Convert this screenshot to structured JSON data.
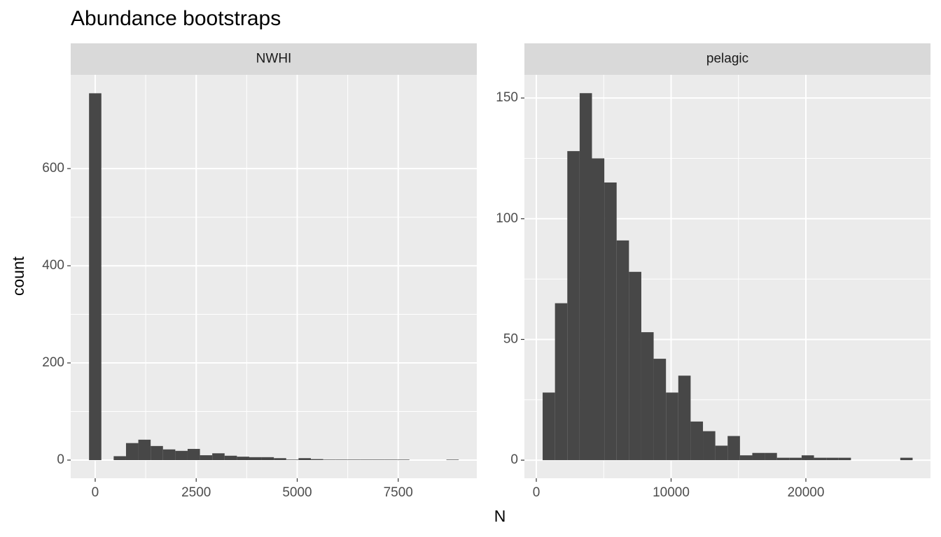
{
  "title": "Abundance bootstraps",
  "x_label": "N",
  "y_label": "count",
  "chart_data": [
    {
      "type": "histogram",
      "panel": "NWHI",
      "color": "#474747",
      "grid": true,
      "bins": [
        -152.5,
        152.5,
        457.5,
        762.5,
        1067.5,
        1372.5,
        1677.5,
        1982.5,
        2287.5,
        2592.5,
        2897.5,
        3202.5,
        3507.5,
        3812.5,
        4117.5,
        4422.5,
        4727.5,
        5032.5,
        5337.5,
        5642.5,
        5947.5,
        6252.5,
        6557.5,
        6862.5,
        7167.5,
        7472.5,
        7777.5,
        8082.5,
        8387.5,
        8692.5,
        8997.5
      ],
      "counts": [
        755,
        0,
        8,
        35,
        42,
        29,
        22,
        19,
        23,
        10,
        14,
        9,
        7,
        6,
        6,
        4,
        1,
        4,
        2,
        1,
        1,
        1,
        1,
        1,
        1,
        1,
        0,
        0,
        0,
        1
      ],
      "xlim": [
        -606,
        9445
      ],
      "ylim": [
        -37.4,
        793
      ],
      "xticks": [
        0,
        2500,
        5000,
        7500
      ],
      "yticks": [
        0,
        200,
        400,
        600
      ]
    },
    {
      "type": "histogram",
      "panel": "pelagic",
      "color": "#474747",
      "grid": true,
      "bins": [
        470,
        1385,
        2300,
        3215,
        4130,
        5045,
        5960,
        6875,
        7790,
        8705,
        9620,
        10535,
        11450,
        12365,
        13280,
        14195,
        15110,
        16025,
        16940,
        17855,
        18770,
        19685,
        20600,
        21515,
        22430,
        23345,
        24260,
        25175,
        26090,
        27005,
        27920
      ],
      "counts": [
        28,
        65,
        128,
        152,
        125,
        115,
        91,
        78,
        53,
        42,
        28,
        35,
        16,
        12,
        6,
        10,
        2,
        3,
        3,
        1,
        1,
        2,
        1,
        1,
        1,
        0,
        0,
        0,
        0,
        1
      ],
      "xlim": [
        -883,
        29247
      ],
      "ylim": [
        -7.5,
        159.6
      ],
      "xticks": [
        0,
        10000,
        20000
      ],
      "yticks": [
        0,
        50,
        100,
        150
      ]
    }
  ]
}
